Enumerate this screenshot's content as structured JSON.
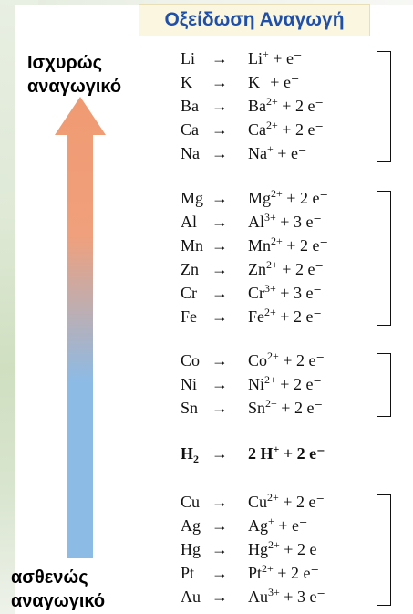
{
  "title": "Οξείδωση Αναγωγή",
  "strong_label": [
    "Ισχυρώς",
    "αναγωγικό"
  ],
  "weak_label": [
    "ασθενώς",
    "αναγωγικό"
  ],
  "arrow_symbol": "→",
  "colors": {
    "arrow_top": "#f09a72",
    "arrow_bottom": "#8cbbe6",
    "title_text": "#1f4fa8"
  },
  "groups": [
    {
      "rows": [
        {
          "metal": "Li",
          "ion": "Li",
          "charge": "+",
          "electrons": "e⁻"
        },
        {
          "metal": "K",
          "ion": "K",
          "charge": "+",
          "electrons": "e⁻"
        },
        {
          "metal": "Ba",
          "ion": "Ba",
          "charge": "2+",
          "electrons": "2 e⁻"
        },
        {
          "metal": "Ca",
          "ion": "Ca",
          "charge": "2+",
          "electrons": "2 e⁻"
        },
        {
          "metal": "Na",
          "ion": "Na",
          "charge": "+",
          "electrons": "e⁻"
        }
      ]
    },
    {
      "rows": [
        {
          "metal": "Mg",
          "ion": "Mg",
          "charge": "2+",
          "electrons": "2 e⁻"
        },
        {
          "metal": "Al",
          "ion": "Al",
          "charge": "3+",
          "electrons": "3 e⁻"
        },
        {
          "metal": "Mn",
          "ion": "Mn",
          "charge": "2+",
          "electrons": "2 e⁻"
        },
        {
          "metal": "Zn",
          "ion": "Zn",
          "charge": "2+",
          "electrons": "2 e⁻"
        },
        {
          "metal": "Cr",
          "ion": "Cr",
          "charge": "3+",
          "electrons": "3 e⁻"
        },
        {
          "metal": "Fe",
          "ion": "Fe",
          "charge": "2+",
          "electrons": "2 e⁻"
        }
      ]
    },
    {
      "rows": [
        {
          "metal": "Co",
          "ion": "Co",
          "charge": "2+",
          "electrons": "2 e⁻"
        },
        {
          "metal": "Ni",
          "ion": "Ni",
          "charge": "2+",
          "electrons": "2 e⁻"
        },
        {
          "metal": "Sn",
          "ion": "Sn",
          "charge": "2+",
          "electrons": "2 e⁻"
        }
      ]
    },
    {
      "rows": [
        {
          "metal": "H",
          "metal_sub": "2",
          "ion": "2 H",
          "charge": "+",
          "electrons": "2 e⁻",
          "bold": true
        }
      ]
    },
    {
      "rows": [
        {
          "metal": "Cu",
          "ion": "Cu",
          "charge": "2+",
          "electrons": "2 e⁻"
        },
        {
          "metal": "Ag",
          "ion": "Ag",
          "charge": "+",
          "electrons": "e⁻"
        },
        {
          "metal": "Hg",
          "ion": "Hg",
          "charge": "2+",
          "electrons": "2 e⁻"
        },
        {
          "metal": "Pt",
          "ion": "Pt",
          "charge": "2+",
          "electrons": "2 e⁻"
        },
        {
          "metal": "Au",
          "ion": "Au",
          "charge": "3+",
          "electrons": "3 e⁻"
        }
      ]
    }
  ]
}
